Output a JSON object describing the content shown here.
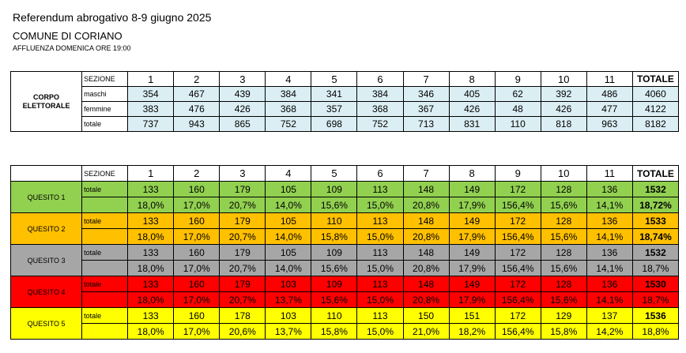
{
  "header": {
    "title": "Referendum abrogativo 8-9 giugno 2025",
    "comune": "COMUNE DI CORIANO",
    "affluenza": "AFFLUENZA DOMENICA ORE 19:00"
  },
  "corpo": {
    "label": "CORPO ELETTORALE",
    "sezione_label": "SEZIONE",
    "sezioni": [
      "1",
      "2",
      "3",
      "4",
      "5",
      "6",
      "7",
      "8",
      "9",
      "10",
      "11"
    ],
    "totale_label": "TOTALE",
    "rows": [
      {
        "label": "maschi",
        "values": [
          "354",
          "467",
          "439",
          "384",
          "341",
          "384",
          "346",
          "405",
          "62",
          "392",
          "486"
        ],
        "totale": "4060"
      },
      {
        "label": "femmine",
        "values": [
          "383",
          "476",
          "426",
          "368",
          "357",
          "368",
          "367",
          "426",
          "48",
          "426",
          "477"
        ],
        "totale": "4122"
      },
      {
        "label": "totale",
        "values": [
          "737",
          "943",
          "865",
          "752",
          "698",
          "752",
          "713",
          "831",
          "110",
          "818",
          "963"
        ],
        "totale": "8182"
      }
    ]
  },
  "quesiti": {
    "sezione_label": "SEZIONE",
    "sezioni": [
      "1",
      "2",
      "3",
      "4",
      "5",
      "6",
      "7",
      "8",
      "9",
      "10",
      "11"
    ],
    "totale_label": "TOTALE",
    "items": [
      {
        "label": "QUESITO 1",
        "row_label": "totale",
        "color": "#92d050",
        "values": [
          "133",
          "160",
          "179",
          "105",
          "109",
          "113",
          "148",
          "149",
          "172",
          "128",
          "136"
        ],
        "totale": "1532",
        "perc": [
          "18,0%",
          "17,0%",
          "20,7%",
          "14,0%",
          "15,6%",
          "15,0%",
          "20,8%",
          "17,9%",
          "156,4%",
          "15,6%",
          "14,1%"
        ],
        "perc_totale": "18,72%"
      },
      {
        "label": "QUESITO 2",
        "row_label": "totale",
        "color": "#ffc000",
        "values": [
          "133",
          "160",
          "179",
          "105",
          "110",
          "113",
          "148",
          "149",
          "172",
          "128",
          "136"
        ],
        "totale": "1533",
        "perc": [
          "18,0%",
          "17,0%",
          "20,7%",
          "14,0%",
          "15,8%",
          "15,0%",
          "20,8%",
          "17,9%",
          "156,4%",
          "15,6%",
          "14,1%"
        ],
        "perc_totale": "18,74%"
      },
      {
        "label": "QUESITO 3",
        "row_label": "totale",
        "color": "#a6a6a6",
        "values": [
          "133",
          "160",
          "179",
          "105",
          "109",
          "113",
          "148",
          "149",
          "172",
          "128",
          "136"
        ],
        "totale": "1532",
        "perc": [
          "18,0%",
          "17,0%",
          "20,7%",
          "14,0%",
          "15,6%",
          "15,0%",
          "20,8%",
          "17,9%",
          "156,4%",
          "15,6%",
          "14,1%"
        ],
        "perc_totale": "18,7%"
      },
      {
        "label": "QUESITO 4",
        "row_label": "totale",
        "color": "#ff0000",
        "values": [
          "133",
          "160",
          "179",
          "103",
          "109",
          "113",
          "148",
          "149",
          "172",
          "128",
          "136"
        ],
        "totale": "1530",
        "perc": [
          "18,0%",
          "17,0%",
          "20,7%",
          "13,7%",
          "15,6%",
          "15,0%",
          "20,8%",
          "17,9%",
          "156,4%",
          "15,6%",
          "14,1%"
        ],
        "perc_totale": "18,7%"
      },
      {
        "label": "QUESITO 5",
        "row_label": "totale",
        "color": "#ffff00",
        "values": [
          "133",
          "160",
          "178",
          "103",
          "110",
          "113",
          "150",
          "151",
          "172",
          "129",
          "137"
        ],
        "totale": "1536",
        "perc": [
          "18,0%",
          "17,0%",
          "20,6%",
          "13,7%",
          "15,8%",
          "15,0%",
          "21,0%",
          "18,2%",
          "156,4%",
          "15,8%",
          "14,2%"
        ],
        "perc_totale": "18,8%"
      }
    ]
  }
}
